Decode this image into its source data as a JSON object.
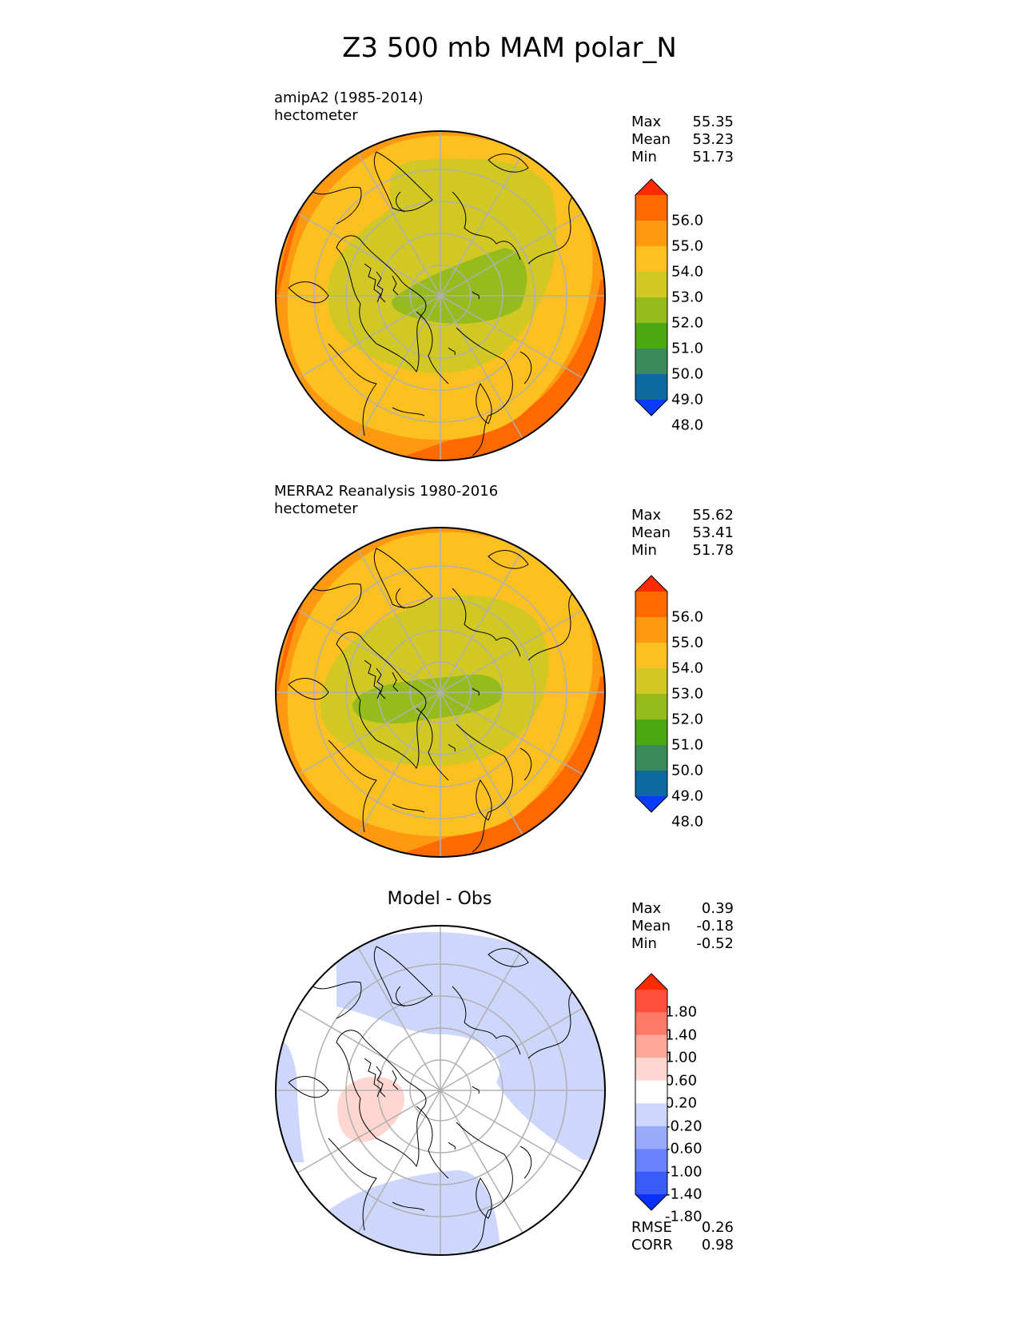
{
  "title": "Z3 500 mb MAM polar_N",
  "panels": [
    {
      "id": "model",
      "label_line1": "amipA2 (1985-2014)",
      "label_line2": "hectometer",
      "stats": {
        "max_label": "Max",
        "max": "55.35",
        "mean_label": "Mean",
        "mean": "53.23",
        "min_label": "Min",
        "min": "51.73"
      },
      "colorbar": {
        "ticks": [
          "56.0",
          "55.0",
          "54.0",
          "53.0",
          "52.0",
          "51.0",
          "50.0",
          "49.0",
          "48.0"
        ],
        "colors": [
          "#ff2a00",
          "#ff6a00",
          "#ff9a10",
          "#fcc020",
          "#d2c823",
          "#96bb1c",
          "#4ca811",
          "#3a8a5a",
          "#0d6aa0",
          "#0a3cfa"
        ]
      }
    },
    {
      "id": "obs",
      "label_line1": "MERRA2 Reanalysis 1980-2016",
      "label_line2": "hectometer",
      "stats": {
        "max_label": "Max",
        "max": "55.62",
        "mean_label": "Mean",
        "mean": "53.41",
        "min_label": "Min",
        "min": "51.78"
      },
      "colorbar": {
        "ticks": [
          "56.0",
          "55.0",
          "54.0",
          "53.0",
          "52.0",
          "51.0",
          "50.0",
          "49.0",
          "48.0"
        ],
        "colors": [
          "#ff2a00",
          "#ff6a00",
          "#ff9a10",
          "#fcc020",
          "#d2c823",
          "#96bb1c",
          "#4ca811",
          "#3a8a5a",
          "#0d6aa0",
          "#0a3cfa"
        ]
      }
    },
    {
      "id": "diff",
      "title": "Model - Obs",
      "stats": {
        "max_label": "Max",
        "max": "0.39",
        "mean_label": "Mean",
        "mean": "-0.18",
        "min_label": "Min",
        "min": "-0.52"
      },
      "colorbar": {
        "ticks": [
          "1.80",
          "1.40",
          "1.00",
          "0.60",
          "0.20",
          "-0.20",
          "-0.60",
          "-1.00",
          "-1.40",
          "-1.80"
        ],
        "colors": [
          "#ff2a00",
          "#ff4f3a",
          "#ff7a66",
          "#ffa898",
          "#ffd6d0",
          "#ffffff",
          "#cdd6fb",
          "#9aaafb",
          "#6a82fb",
          "#3a5cfb",
          "#0a30fb"
        ]
      },
      "metrics": {
        "rmse_label": "RMSE",
        "rmse": "0.26",
        "corr_label": "CORR",
        "corr": "0.98"
      }
    }
  ],
  "colors": {
    "orange_dark": "#ff6a00",
    "orange": "#ff9a10",
    "yellow_orange": "#fcc020",
    "olive": "#d2c823",
    "green": "#96bb1c",
    "grid": "#b0b0b0",
    "diff_blue": "#cdd6fb",
    "diff_pink": "#ffd6d0"
  }
}
